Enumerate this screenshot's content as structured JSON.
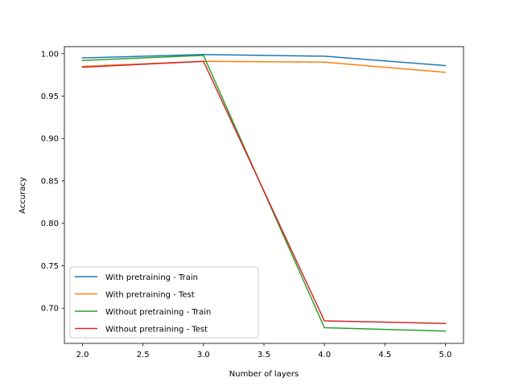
{
  "chart_data": {
    "type": "line",
    "title": "",
    "xlabel": "Number of layers",
    "ylabel": "Accuracy",
    "x": [
      2,
      3,
      4,
      5
    ],
    "xlim": [
      1.85,
      5.15
    ],
    "ylim": [
      0.6585,
      1.0083
    ],
    "xticks": [
      "2.0",
      "2.5",
      "3.0",
      "3.5",
      "4.0",
      "4.5",
      "5.0"
    ],
    "xtick_values": [
      2.0,
      2.5,
      3.0,
      3.5,
      4.0,
      4.5,
      5.0
    ],
    "yticks": [
      "0.70",
      "0.75",
      "0.80",
      "0.85",
      "0.90",
      "0.95",
      "1.00"
    ],
    "ytick_values": [
      0.7,
      0.75,
      0.8,
      0.85,
      0.9,
      0.95,
      1.0
    ],
    "grid": false,
    "legend_position": "lower-left",
    "series": [
      {
        "name": "With pretraining - Train",
        "color": "#1f77b4",
        "values": [
          0.995,
          0.999,
          0.997,
          0.986
        ]
      },
      {
        "name": "With pretraining - Test",
        "color": "#ff7f0e",
        "values": [
          0.985,
          0.991,
          0.99,
          0.978
        ]
      },
      {
        "name": "Without pretraining - Train",
        "color": "#2ca02c",
        "values": [
          0.992,
          0.998,
          0.677,
          0.673
        ]
      },
      {
        "name": "Without pretraining - Test",
        "color": "#d62728",
        "values": [
          0.984,
          0.991,
          0.685,
          0.682
        ]
      }
    ]
  }
}
